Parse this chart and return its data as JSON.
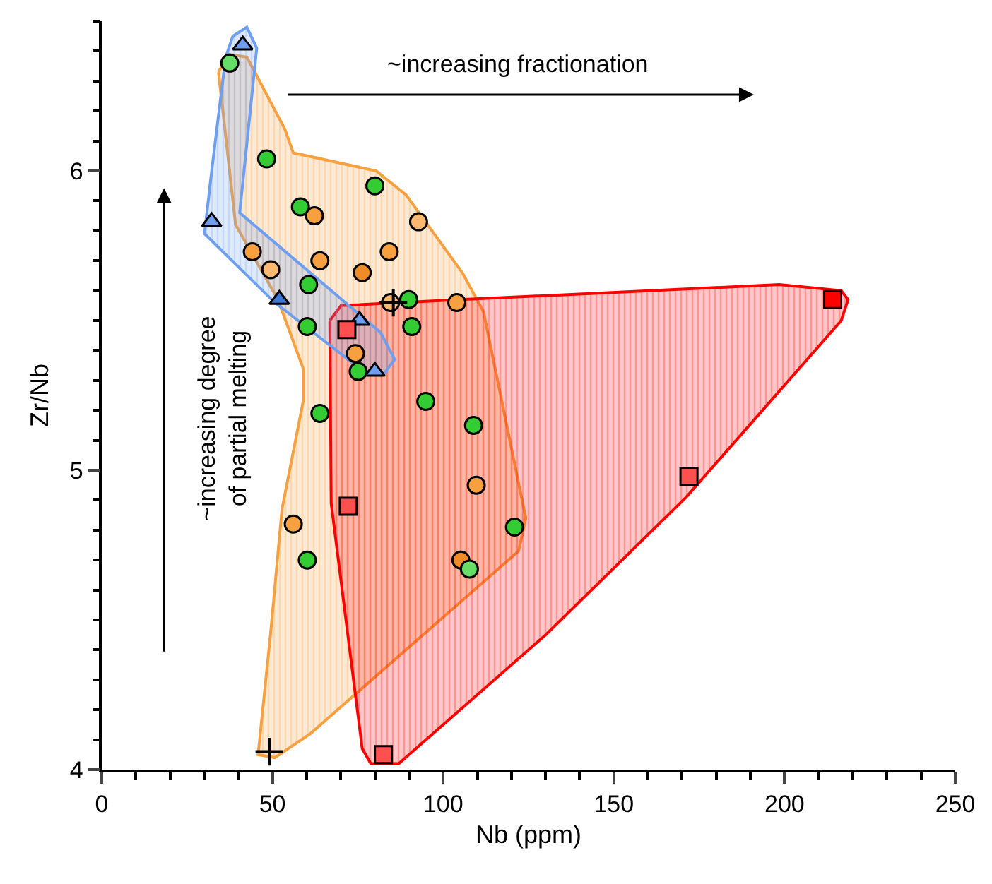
{
  "chart_data": {
    "type": "scatter",
    "xlabel": "Nb (ppm)",
    "ylabel": "Zr/Nb",
    "xlim": [
      0,
      250
    ],
    "xticks": [
      0,
      50,
      100,
      150,
      200,
      250
    ],
    "ylim": [
      4,
      6.5
    ],
    "yticks": [
      4,
      5,
      6
    ],
    "annotations": [
      "~increasing fractionation",
      "~increasing degree\nof partial melting"
    ],
    "series": [
      {
        "type": "area",
        "color": "#f7a040",
        "marker": "none",
        "x": [
          34.2,
          37.1,
          42.5,
          53.6,
          56.1,
          80.4,
          89.1,
          105.6,
          111.8,
          124.2,
          122.1,
          61.1,
          50.7,
          45.8,
          49.5,
          52.8,
          59.0,
          59.0,
          51.6,
          39.2
        ],
        "values": [
          6.33,
          6.39,
          6.38,
          6.14,
          6.06,
          6.0,
          5.92,
          5.66,
          5.53,
          4.84,
          4.73,
          4.12,
          4.04,
          4.05,
          4.46,
          4.87,
          5.23,
          5.34,
          5.57,
          5.82
        ]
      },
      {
        "type": "area",
        "color": "#ff0000",
        "marker": "none",
        "x": [
          66.8,
          70.1,
          105.2,
          198.4,
          216.6,
          218.6,
          216.6,
          171.2,
          130.0,
          87.0,
          78.8,
          76.3,
          67.2
        ],
        "values": [
          5.5,
          5.55,
          5.57,
          5.62,
          5.6,
          5.57,
          5.5,
          4.91,
          4.45,
          4.02,
          4.02,
          4.07,
          4.89
        ]
      },
      {
        "type": "area",
        "color": "#6e9ef0",
        "marker": "none",
        "x": [
          38.4,
          42.5,
          45.4,
          40.4,
          81.7,
          85.8,
          82.5,
          76.7,
          50.7,
          30.1,
          32.2,
          36.3
        ],
        "values": [
          6.45,
          6.48,
          6.41,
          5.86,
          5.46,
          5.37,
          5.32,
          5.33,
          5.56,
          5.79,
          6.0,
          6.38
        ]
      },
      {
        "color": "#33cc33",
        "marker": "circle",
        "x": [
          48.3,
          58.2,
          80.0,
          60.6,
          60.2,
          89.9,
          90.8,
          75.1,
          63.9,
          94.9,
          108.9,
          120.9,
          60.2
        ],
        "values": [
          6.04,
          5.88,
          5.95,
          5.62,
          5.48,
          5.57,
          5.48,
          5.33,
          5.19,
          5.23,
          5.15,
          4.81,
          4.7
        ]
      },
      {
        "color": "#f7a040",
        "marker": "circle",
        "x": [
          62.3,
          44.1,
          63.9,
          84.2,
          104.0,
          74.3,
          56.1,
          109.7
        ],
        "values": [
          5.85,
          5.73,
          5.7,
          5.73,
          5.56,
          5.39,
          4.82,
          4.95
        ]
      },
      {
        "color": "#f08c28",
        "marker": "circle",
        "x": [
          76.3,
          105.2
        ],
        "values": [
          5.66,
          4.7
        ]
      },
      {
        "color": "#fbb870",
        "marker": "circle",
        "x": [
          92.8,
          49.5,
          84.6
        ],
        "values": [
          5.83,
          5.67,
          5.56
        ]
      },
      {
        "color": "#66dd66",
        "marker": "circle",
        "x": [
          37.5,
          107.7
        ],
        "values": [
          6.36,
          4.67
        ]
      },
      {
        "color": "#6e9ef0",
        "marker": "triangle",
        "x": [
          41.3,
          32.2,
          75.5,
          80.0
        ],
        "values": [
          6.42,
          5.83,
          5.5,
          5.33
        ]
      },
      {
        "color": "#3c78d8",
        "marker": "triangle",
        "x": [
          52.0
        ],
        "values": [
          5.57
        ]
      },
      {
        "color": "#ff5050",
        "marker": "square",
        "x": [
          71.8,
          72.2,
          172.0,
          82.5
        ],
        "values": [
          5.47,
          4.88,
          4.98,
          4.05
        ]
      },
      {
        "color": "#ff0000",
        "marker": "square",
        "x": [
          214.1
        ],
        "values": [
          5.57
        ]
      },
      {
        "color": "#000000",
        "marker": "cross",
        "x": [
          85.4,
          49.1
        ],
        "values": [
          5.56,
          4.06
        ]
      }
    ]
  }
}
